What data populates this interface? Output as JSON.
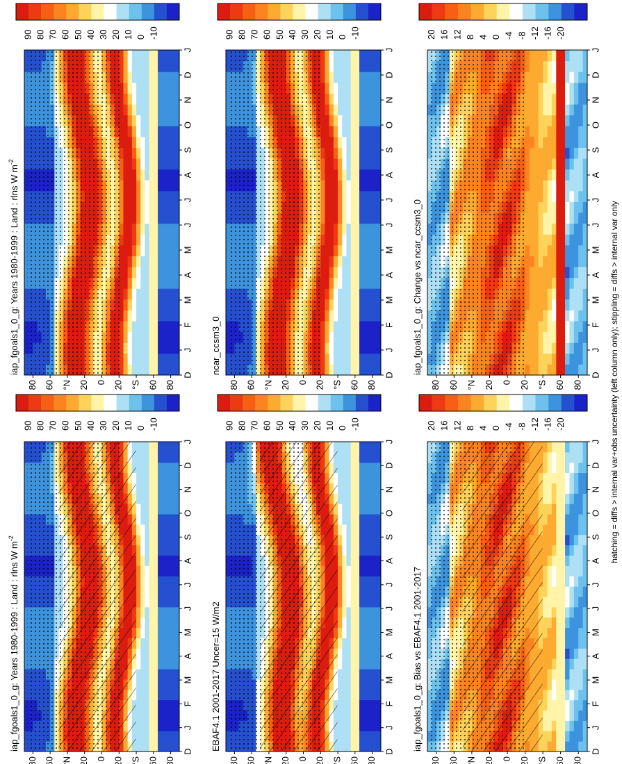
{
  "months": [
    "D",
    "J",
    "F",
    "M",
    "A",
    "M",
    "J",
    "J",
    "A",
    "S",
    "O",
    "N",
    "D",
    "J"
  ],
  "latitudes": [
    "80",
    "60",
    "°N",
    "20",
    "0",
    "20",
    "°S",
    "60",
    "80"
  ],
  "panels": [
    {
      "title": "iap_fgoals1_0_g: Years 1980-1999 : Land : rlns W m",
      "title_superscript": "-2",
      "colorbar_labels": [
        "90",
        "80",
        "70",
        "60",
        "50",
        "40",
        "30",
        "20",
        "10",
        "0",
        "-10"
      ]
    },
    {
      "title": "iap_fgoals1_0_g: Years 1980-1999 : Land : rlns W m",
      "title_superscript": "-2",
      "colorbar_labels": [
        "90",
        "80",
        "70",
        "60",
        "50",
        "40",
        "30",
        "20",
        "10",
        "0",
        "-10"
      ]
    },
    {
      "title": "ncar_ccsm3_0",
      "colorbar_labels": [
        "90",
        "80",
        "70",
        "60",
        "50",
        "40",
        "30",
        "20",
        "10",
        "0",
        "-10"
      ]
    },
    {
      "title": "EBAF4.1 2001-2017 Uncer=15 W/m2",
      "colorbar_labels": [
        "90",
        "80",
        "70",
        "60",
        "50",
        "40",
        "30",
        "20",
        "10",
        "0",
        "-10"
      ]
    },
    {
      "title": "iap_fgoals1_0_g: Change vs ncar_ccsm3_0",
      "colorbar_labels": [
        "20",
        "16",
        "12",
        "8",
        "4",
        "0",
        "-4",
        "-8",
        "-12",
        "-16",
        "-20"
      ]
    },
    {
      "title": "iap_fgoals1_0_g: Bias vs EBAF4.1 2001-2017",
      "colorbar_labels": [
        "20",
        "16",
        "12",
        "8",
        "4",
        "0",
        "-4",
        "-8",
        "-12",
        "-16",
        "-20"
      ]
    }
  ],
  "footnote": "hatching = diffs > internal var+obs uncertainty (left column only); stippling = diffs > internal var only"
}
